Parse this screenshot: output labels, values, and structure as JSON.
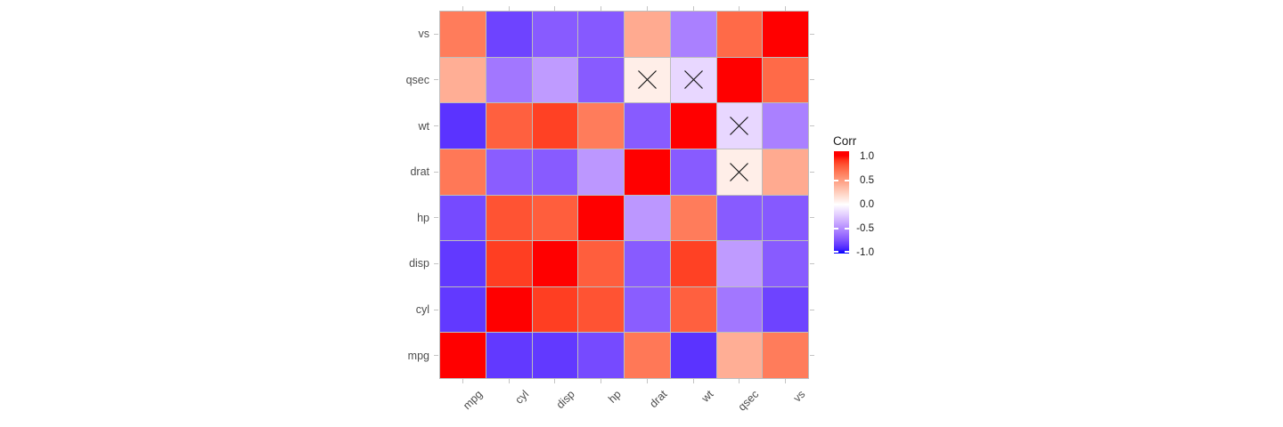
{
  "chart_data": {
    "type": "heatmap",
    "title": "",
    "x_categories": [
      "mpg",
      "cyl",
      "disp",
      "hp",
      "drat",
      "wt",
      "qsec",
      "vs"
    ],
    "y_categories_top_to_bottom": [
      "vs",
      "qsec",
      "wt",
      "drat",
      "hp",
      "disp",
      "cyl",
      "mpg"
    ],
    "matrix_rows_top_to_bottom": [
      [
        0.66,
        -0.81,
        -0.71,
        -0.72,
        0.44,
        -0.55,
        0.74,
        1.0
      ],
      [
        0.42,
        -0.59,
        -0.43,
        -0.71,
        0.09,
        -0.17,
        1.0,
        0.74
      ],
      [
        -0.87,
        0.78,
        0.89,
        0.66,
        -0.71,
        1.0,
        -0.17,
        -0.55
      ],
      [
        0.68,
        -0.7,
        -0.71,
        -0.45,
        1.0,
        -0.71,
        0.09,
        0.44
      ],
      [
        -0.78,
        0.83,
        0.79,
        1.0,
        -0.45,
        0.66,
        -0.71,
        -0.72
      ],
      [
        -0.85,
        0.9,
        1.0,
        0.79,
        -0.71,
        0.89,
        -0.43,
        -0.71
      ],
      [
        -0.85,
        1.0,
        0.9,
        0.83,
        -0.7,
        0.78,
        -0.59,
        -0.81
      ],
      [
        1.0,
        -0.85,
        -0.85,
        -0.78,
        0.68,
        -0.87,
        0.42,
        0.66
      ]
    ],
    "not_significant_cross_cells": [
      {
        "row": "qsec",
        "col": "drat"
      },
      {
        "row": "qsec",
        "col": "wt"
      },
      {
        "row": "wt",
        "col": "qsec"
      },
      {
        "row": "drat",
        "col": "qsec"
      }
    ],
    "legend": {
      "title": "Corr",
      "tick_labels": [
        "1.0",
        "0.5",
        "0.0",
        "-0.5",
        "-1.0"
      ],
      "tick_values": [
        1.0,
        0.5,
        0.0,
        -0.5,
        -1.0
      ],
      "range": [
        -1.0,
        1.0
      ],
      "color_high": "#FF0000",
      "color_mid": "#FFFFFF",
      "color_low": "#0000FF",
      "white_bar_tick_values": [
        0.5,
        0.0,
        -0.5,
        -1.0
      ]
    },
    "style": {
      "grid_line_color": "#BDBDBD",
      "axis_text_color": "#4D4D4D",
      "axis_tick_color": "#C4C4C4",
      "cross_color": "#1A1A1A",
      "background": "#FFFFFF"
    }
  }
}
